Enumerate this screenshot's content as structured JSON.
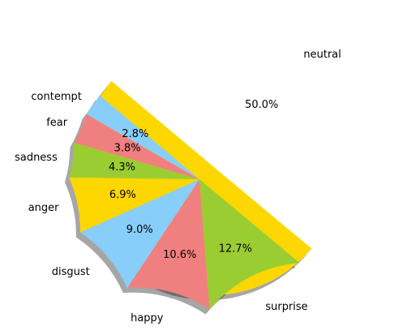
{
  "chart_data": {
    "type": "pie",
    "title": "",
    "start_angle_deg": 140,
    "shadow": true,
    "slices": [
      {
        "label": "neutral",
        "value": 50.0,
        "pct_label": "50.0%",
        "color": "#FFD700",
        "explode": true
      },
      {
        "label": "surprise",
        "value": 12.7,
        "pct_label": "12.7%",
        "color": "#9ACD32",
        "explode": false
      },
      {
        "label": "happy",
        "value": 10.6,
        "pct_label": "10.6%",
        "color": "#F08080",
        "explode": false
      },
      {
        "label": "disgust",
        "value": 9.0,
        "pct_label": "9.0%",
        "color": "#87CEFA",
        "explode": false
      },
      {
        "label": "anger",
        "value": 6.9,
        "pct_label": "6.9%",
        "color": "#FFD700",
        "explode": false
      },
      {
        "label": "sadness",
        "value": 4.3,
        "pct_label": "4.3%",
        "color": "#9ACD32",
        "explode": false
      },
      {
        "label": "fear",
        "value": 3.8,
        "pct_label": "3.8%",
        "color": "#F08080",
        "explode": false
      },
      {
        "label": "contempt",
        "value": 2.8,
        "pct_label": "2.8%",
        "color": "#87CEFA",
        "explode": false
      }
    ]
  }
}
